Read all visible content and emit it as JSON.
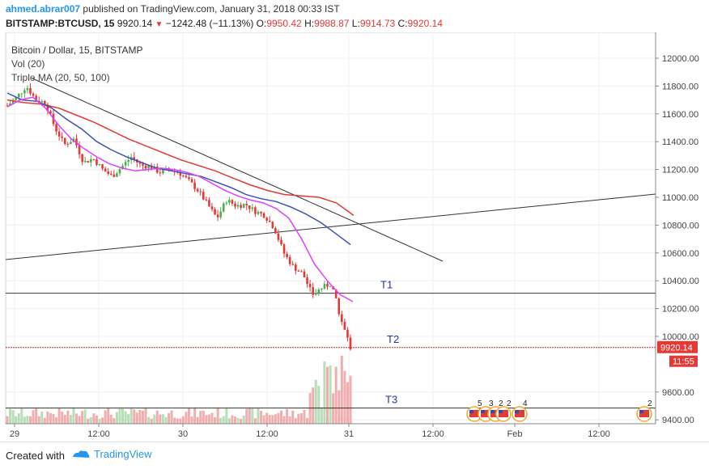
{
  "header": {
    "author": "ahmed.abrar007",
    "published_text": "published on TradingView.com, January 31, 2018 00:33 IST",
    "symbol": "BITSTAMP:BTCUSD, 15",
    "last": "9920.14",
    "change": "−1242.48 (−11.13%)",
    "o_label": "O:",
    "o_value": "9950.42",
    "h_label": "H:",
    "h_value": "9988.87",
    "l_label": "L:",
    "l_value": "9914.73",
    "c_label": "C:",
    "c_value": "9920.14"
  },
  "legend": {
    "title": "Bitcoin / Dollar, 15, BITSTAMP",
    "vol": "Vol (20)",
    "ma": "Triple MA (20, 50, 100)"
  },
  "footer": {
    "created_with": "Created with",
    "brand": "TradingView",
    "logo_icon": "tradingview-logo-icon"
  },
  "colors": {
    "up": "#4caf50",
    "down": "#e53935",
    "ma20": "#e040fb",
    "ma50": "#3f51b5",
    "ma100": "#e53935"
  },
  "chart_data": {
    "type": "candlestick",
    "ylim": [
      9350,
      12150
    ],
    "y_ticks": [
      "12000.00",
      "11800.00",
      "11600.00",
      "11400.00",
      "11200.00",
      "11000.00",
      "10800.00",
      "10600.00",
      "10400.00",
      "10200.00",
      "10000.00",
      "9600.00",
      "9400.00"
    ],
    "x_ticks": [
      "29",
      "12:00",
      "30",
      "12:00",
      "31",
      "12:00",
      "Feb",
      "12:00"
    ],
    "last_price_label": "9920.14",
    "countdown_label": "11:55",
    "last_price": 9920.14,
    "horizontal_levels": [
      {
        "name": "T1",
        "price": 10310
      },
      {
        "name": "T2",
        "price": 9920
      },
      {
        "name": "T3",
        "price": 9485
      }
    ],
    "ohlc_path": [
      11660,
      11720,
      11800,
      11700,
      11680,
      11500,
      11380,
      11420,
      11250,
      11280,
      11200,
      11150,
      11220,
      11290,
      11230,
      11220,
      11180,
      11200,
      11180,
      11120,
      11050,
      10950,
      10850,
      10980,
      10940,
      10950,
      10900,
      10870,
      10780,
      10600,
      10500,
      10450,
      10300,
      10350,
      10380,
      10120,
      9920
    ],
    "ma20": [
      11650,
      11700,
      11720,
      11640,
      11520,
      11420,
      11350,
      11290,
      11240,
      11210,
      11190,
      11200,
      11210,
      11200,
      11180,
      11150,
      11100,
      11050,
      11010,
      10980,
      10960,
      10920,
      10850,
      10700,
      10520,
      10400,
      10300,
      10250
    ],
    "ma50": [
      11750,
      11700,
      11690,
      11640,
      11560,
      11490,
      11400,
      11340,
      11290,
      11250,
      11210,
      11190,
      11170,
      11150,
      11110,
      11070,
      11020,
      10990,
      10970,
      10930,
      10880,
      10820,
      10740,
      10660
    ],
    "ma100": [
      11700,
      11680,
      11670,
      11640,
      11590,
      11540,
      11480,
      11420,
      11370,
      11320,
      11270,
      11230,
      11190,
      11140,
      11090,
      11050,
      11020,
      11010,
      11000,
      10960,
      10870
    ],
    "volume_icons": [
      {
        "label": "5"
      },
      {
        "label": "3"
      },
      {
        "label": "2"
      },
      {
        "label": "2"
      },
      {
        "label": "4"
      },
      {
        "label": "2"
      }
    ]
  }
}
